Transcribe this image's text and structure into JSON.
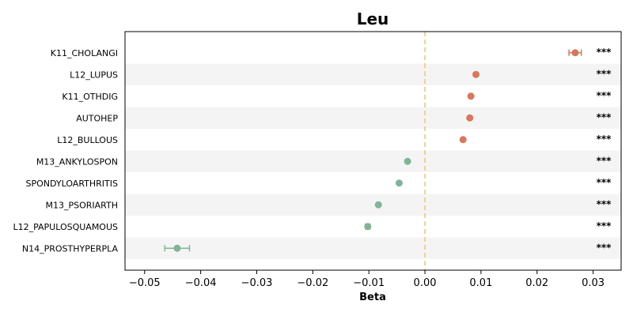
{
  "chart_data": {
    "type": "scatter",
    "title": "Leu",
    "xlabel": "Beta",
    "ylabel": "",
    "xlim": [
      -0.0535,
      0.035
    ],
    "xticks": [
      -0.05,
      -0.04,
      -0.03,
      -0.02,
      -0.01,
      0.0,
      0.01,
      0.02,
      0.03
    ],
    "xtick_labels": [
      "−0.05",
      "−0.04",
      "−0.03",
      "−0.02",
      "−0.01",
      "0.00",
      "0.01",
      "0.02",
      "0.03"
    ],
    "reference_line": 0.0,
    "grid": false,
    "points": [
      {
        "label": "K11_CHOLANGI",
        "beta": 0.0268,
        "ci_low": 0.0257,
        "ci_high": 0.0279,
        "significance": "***"
      },
      {
        "label": "L12_LUPUS",
        "beta": 0.0091,
        "ci_low": 0.0089,
        "ci_high": 0.0093,
        "significance": "***"
      },
      {
        "label": "K11_OTHDIG",
        "beta": 0.0082,
        "ci_low": 0.008,
        "ci_high": 0.0084,
        "significance": "***"
      },
      {
        "label": "AUTOHEP",
        "beta": 0.008,
        "ci_low": 0.0078,
        "ci_high": 0.0082,
        "significance": "***"
      },
      {
        "label": "L12_BULLOUS",
        "beta": 0.0068,
        "ci_low": 0.0067,
        "ci_high": 0.0069,
        "significance": "***"
      },
      {
        "label": "M13_ANKYLOSPON",
        "beta": -0.0031,
        "ci_low": -0.0032,
        "ci_high": -0.003,
        "significance": "***"
      },
      {
        "label": "SPONDYLOARTHRITIS",
        "beta": -0.0046,
        "ci_low": -0.0047,
        "ci_high": -0.0045,
        "significance": "***"
      },
      {
        "label": "M13_PSORIARTH",
        "beta": -0.0083,
        "ci_low": -0.0085,
        "ci_high": -0.0081,
        "significance": "***"
      },
      {
        "label": "L12_PAPULOSQUAMOUS",
        "beta": -0.0102,
        "ci_low": -0.0106,
        "ci_high": -0.0098,
        "significance": "***"
      },
      {
        "label": "N14_PROSTHYPERPLA",
        "beta": -0.0442,
        "ci_low": -0.0464,
        "ci_high": -0.042,
        "significance": "***"
      }
    ],
    "colors": {
      "positive": "#d9765b",
      "negative": "#80b496",
      "reference_line": "#f5c57a",
      "band": "#f4f4f4"
    }
  }
}
